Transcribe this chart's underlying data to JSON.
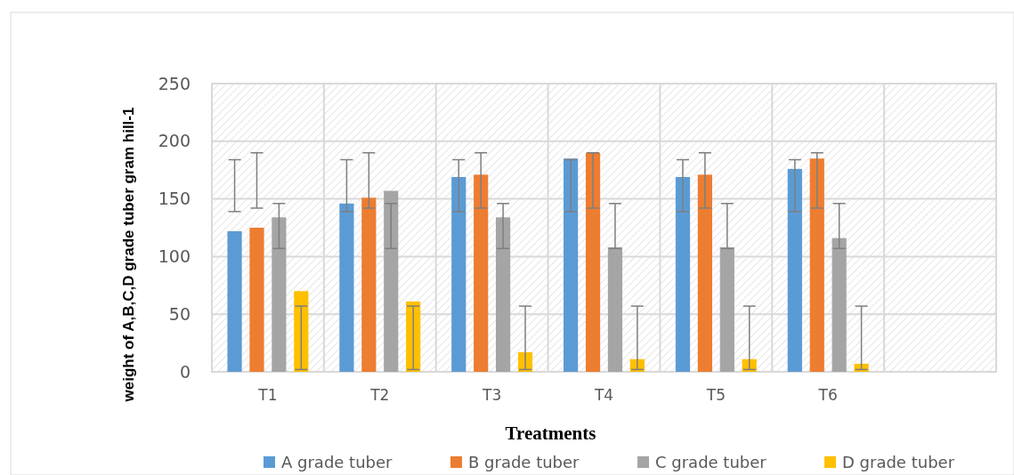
{
  "chart_data": {
    "type": "bar",
    "xlabel": "Treatments",
    "ylabel": "weight of A,B,C,D grade tuber gram hill-1",
    "categories": [
      "T1",
      "T2",
      "T3",
      "T4",
      "T5",
      "T6",
      null
    ],
    "series": [
      {
        "name": "A grade tuber",
        "color": "#5b9bd5",
        "values": [
          122,
          146,
          169,
          185,
          169,
          176,
          null
        ],
        "errors": [
          [
            139,
            184
          ],
          [
            139,
            184
          ],
          [
            139,
            184
          ],
          [
            139,
            184
          ],
          [
            139,
            184
          ],
          [
            139,
            184
          ],
          null
        ]
      },
      {
        "name": "B grade tuber",
        "color": "#ed7d31",
        "values": [
          125,
          151,
          171,
          190,
          171,
          185,
          null
        ],
        "errors": [
          [
            142,
            190
          ],
          [
            142,
            190
          ],
          [
            142,
            190
          ],
          [
            142,
            190
          ],
          [
            142,
            190
          ],
          [
            142,
            190
          ],
          null
        ]
      },
      {
        "name": "C grade tuber",
        "color": "#a5a5a5",
        "values": [
          134,
          157,
          134,
          108,
          108,
          116,
          null
        ],
        "errors": [
          [
            107,
            146
          ],
          [
            107,
            146
          ],
          [
            107,
            146
          ],
          [
            107,
            146
          ],
          [
            107,
            146
          ],
          [
            107,
            146
          ],
          null
        ]
      },
      {
        "name": "D grade tuber",
        "color": "#ffc000",
        "values": [
          70,
          61,
          17,
          11,
          11,
          7,
          null
        ],
        "errors": [
          [
            2,
            57
          ],
          [
            2,
            57
          ],
          [
            2,
            57
          ],
          [
            2,
            57
          ],
          [
            2,
            57
          ],
          [
            2,
            57
          ],
          null
        ]
      }
    ],
    "ylim": [
      0,
      250
    ],
    "yticks": [
      0,
      50,
      100,
      150,
      200,
      250
    ],
    "grid": true,
    "legend": "bottom"
  }
}
